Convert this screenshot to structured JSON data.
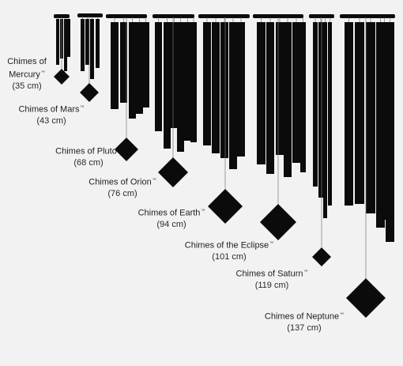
{
  "trademark": "™",
  "chimes": [
    {
      "name_lines": [
        "Chimes of",
        "Mercury"
      ],
      "size": "(35 cm)"
    },
    {
      "name_lines": [
        "Chimes of Mars"
      ],
      "size": "(43 cm)"
    },
    {
      "name_lines": [
        "Chimes of Pluto"
      ],
      "size": "(68 cm)"
    },
    {
      "name_lines": [
        "Chimes of Orion"
      ],
      "size": "(76 cm)"
    },
    {
      "name_lines": [
        "Chimes of Earth"
      ],
      "size": "(94 cm)"
    },
    {
      "name_lines": [
        "Chimes of the Eclipse"
      ],
      "size": "(101 cm)"
    },
    {
      "name_lines": [
        "Chimes of Saturn"
      ],
      "size": "(119 cm)"
    },
    {
      "name_lines": [
        "Chimes of Neptune"
      ],
      "size": "(137 cm)"
    }
  ],
  "colors": {
    "background": "#f1f2f1",
    "chime": "#0b0b0b",
    "text": "#1e1e1e"
  }
}
